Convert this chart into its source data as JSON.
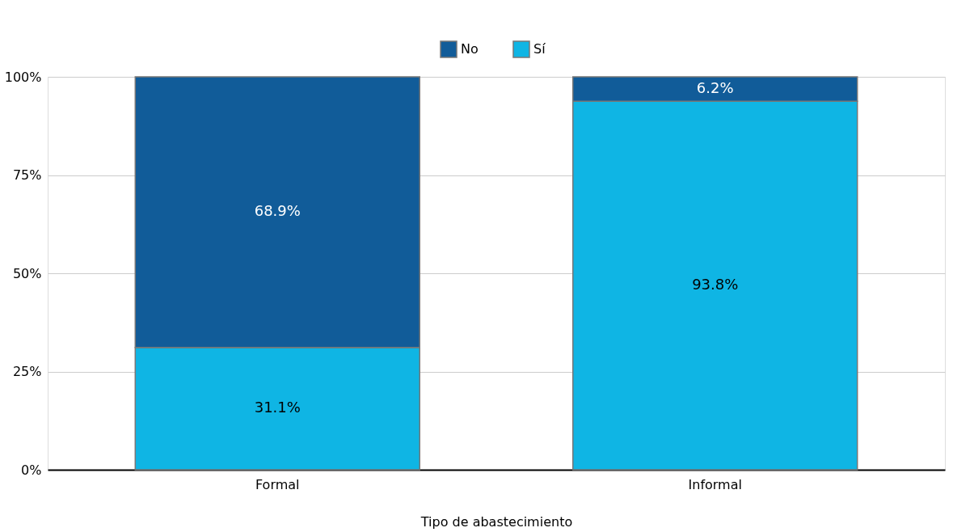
{
  "chart_data": {
    "type": "bar",
    "stacked": true,
    "xlabel": "Tipo de abastecimiento",
    "categories": [
      "Formal",
      "Informal"
    ],
    "series": [
      {
        "name": "Sí",
        "color": "#0fb5e4",
        "values": [
          31.1,
          93.8
        ]
      },
      {
        "name": "No",
        "color": "#115c99",
        "values": [
          68.9,
          6.2
        ]
      }
    ],
    "ylim": [
      0,
      100
    ],
    "yticks": [
      {
        "value": 0,
        "label": "0%"
      },
      {
        "value": 25,
        "label": "25%"
      },
      {
        "value": 50,
        "label": "50%"
      },
      {
        "value": 75,
        "label": "75%"
      },
      {
        "value": 100,
        "label": "100%"
      }
    ],
    "value_labels": [
      [
        "31.1%",
        "93.8%"
      ],
      [
        "68.9%",
        "6.2%"
      ]
    ],
    "grid": "y",
    "legend": "top"
  }
}
